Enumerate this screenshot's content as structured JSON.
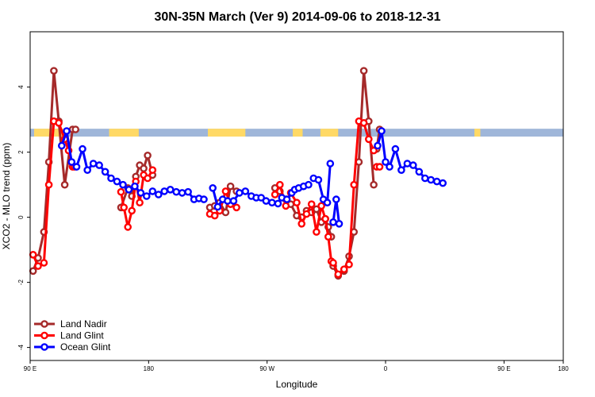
{
  "chart_data": {
    "type": "line",
    "title": "30N-35N March (Ver 9)   2014-09-06 to 2018-12-31",
    "xlabel": "Longitude",
    "ylabel": "XCO2 - MLO trend (ppm)",
    "xlim": [
      -90,
      180
    ],
    "ylim": [
      -4.4,
      5.7
    ],
    "x_tick_values": [
      -90,
      -30,
      30,
      90,
      150,
      180
    ],
    "x_tick_labels": [
      "90 E",
      "180",
      "90 W",
      "0",
      "90 E",
      "180"
    ],
    "y_ticks": [
      -4,
      -2,
      0,
      2,
      4
    ],
    "y_tick_labels": [
      "-4",
      "-2",
      "0",
      "2",
      "4"
    ],
    "legend_position": "bottom-left",
    "coverage_band": {
      "y_range": [
        2.48,
        2.72
      ],
      "land_color": "#ffd966",
      "ocean_color": "#9fb6d9",
      "land_segments": [
        [
          -88,
          -72
        ],
        [
          -50,
          -35
        ],
        [
          0,
          19
        ],
        [
          43,
          48
        ],
        [
          57,
          66
        ],
        [
          135,
          138
        ]
      ]
    },
    "series": [
      {
        "name": "Land Nadir",
        "color": "#a52a2a",
        "segments": [
          {
            "x": [
              -88.5,
              -86,
              -83,
              -80.5,
              -78,
              -75.5,
              -72.5,
              -68.5,
              -67
            ],
            "y": [
              -1.65,
              -1.25,
              -0.45,
              1.7,
              4.5,
              2.95,
              1.0,
              2.7,
              2.7
            ]
          },
          {
            "x": [
              -44,
              -40.5,
              -38.5,
              -36.5,
              -34.5,
              -32.5,
              -30.5,
              -28
            ],
            "y": [
              0.3,
              0.9,
              0.65,
              1.25,
              1.6,
              1.5,
              1.9,
              1.3
            ]
          },
          {
            "x": [
              1,
              3.5,
              6,
              9,
              11.5,
              14.5
            ],
            "y": [
              0.3,
              0.35,
              0.45,
              0.15,
              0.95,
              0.8
            ]
          },
          {
            "x": [
              34,
              36.5,
              39.5,
              42,
              45,
              47.5,
              50,
              52.5,
              55,
              57.5,
              59.5,
              61,
              62.5
            ],
            "y": [
              0.9,
              0.8,
              0.55,
              0.4,
              0.05,
              0.0,
              0.2,
              0.15,
              0.25,
              -0.15,
              -0.05,
              -0.3,
              -0.6
            ]
          },
          {
            "x": [
              63.5,
              66,
              69,
              71.5,
              74,
              76.5,
              79,
              81.5,
              84
            ],
            "y": [
              -1.5,
              -1.8,
              -1.65,
              -1.2,
              -0.45,
              1.7,
              4.5,
              2.95,
              1.0
            ]
          },
          {
            "x": [
              85.5,
              87
            ],
            "y": [
              2.1,
              2.7
            ]
          }
        ]
      },
      {
        "name": "Land Glint",
        "color": "#ff0000",
        "segments": [
          {
            "x": [
              -88.5,
              -86,
              -83,
              -80.5,
              -78,
              -75.5,
              -72.5,
              -70.5,
              -68.5,
              -67.5
            ],
            "y": [
              -1.15,
              -1.5,
              -1.4,
              1.0,
              2.95,
              2.9,
              2.4,
              2.05,
              1.55,
              1.55
            ]
          },
          {
            "x": [
              -44,
              -42.5,
              -40.5,
              -38.5,
              -36.5,
              -34.5,
              -32.5,
              -30.5,
              -28
            ],
            "y": [
              0.78,
              0.3,
              -0.3,
              0.2,
              1.1,
              0.45,
              1.3,
              1.2,
              1.45
            ]
          },
          {
            "x": [
              1,
              3.5,
              6,
              9,
              11.5,
              14.5
            ],
            "y": [
              0.1,
              0.05,
              0.2,
              0.8,
              0.4,
              0.3
            ]
          },
          {
            "x": [
              34,
              36.5,
              39.5,
              42,
              45,
              47.5,
              50,
              52.5,
              55,
              57.5,
              59.5,
              61,
              62.5
            ],
            "y": [
              0.7,
              1.0,
              0.35,
              0.75,
              0.45,
              -0.2,
              0.1,
              0.4,
              -0.45,
              0.35,
              -0.05,
              -0.6,
              -1.35
            ]
          },
          {
            "x": [
              63.5,
              66,
              69,
              71.5,
              74,
              76.5,
              79,
              81.5,
              84
            ],
            "y": [
              -1.4,
              -1.75,
              -1.6,
              -1.45,
              1.0,
              2.95,
              2.9,
              2.4,
              2.05
            ]
          },
          {
            "x": [
              85.5,
              87
            ],
            "y": [
              1.55,
              1.55
            ]
          }
        ]
      },
      {
        "name": "Ocean Glint",
        "color": "#0000ff",
        "segments": [
          {
            "x": [
              -74,
              -71.5,
              -69,
              -66.5,
              -63.5,
              -61,
              -58,
              -55,
              -52,
              -49,
              -46,
              -43,
              -40,
              -37,
              -34,
              -31,
              -28,
              -25,
              -22,
              -19,
              -16,
              -13,
              -10,
              -7
            ],
            "y": [
              2.2,
              2.65,
              1.7,
              1.55,
              2.1,
              1.45,
              1.65,
              1.6,
              1.4,
              1.2,
              1.1,
              1.0,
              0.85,
              0.95,
              0.75,
              0.65,
              0.8,
              0.7,
              0.8,
              0.85,
              0.78,
              0.75,
              0.78,
              0.55
            ]
          },
          {
            "x": [
              -4.5,
              -2
            ],
            "y": [
              0.58,
              0.55
            ]
          },
          {
            "x": [
              2.5,
              5,
              7.5,
              10,
              13,
              16,
              19,
              22,
              24.5,
              27
            ],
            "y": [
              0.9,
              0.32,
              0.55,
              0.5,
              0.5,
              0.75,
              0.8,
              0.65,
              0.6,
              0.6
            ]
          },
          {
            "x": [
              29.5,
              32.5,
              35.5,
              37.5,
              40,
              42.5
            ],
            "y": [
              0.5,
              0.45,
              0.42,
              0.6,
              0.55,
              0.75
            ]
          },
          {
            "x": [
              44,
              46,
              48.5,
              51
            ],
            "y": [
              0.85,
              0.9,
              0.95,
              1.0
            ]
          },
          {
            "x": [
              53.5,
              56,
              58.5,
              60.5,
              62
            ],
            "y": [
              1.2,
              1.15,
              0.55,
              0.45,
              1.65
            ]
          },
          {
            "x": [
              63.5,
              65,
              66.5
            ],
            "y": [
              -0.15,
              0.55,
              -0.2
            ]
          },
          {
            "x": [
              86,
              88,
              90,
              92,
              95,
              98,
              101,
              104,
              107,
              110,
              113,
              116,
              119
            ],
            "y": [
              2.2,
              2.65,
              1.7,
              1.55,
              2.1,
              1.45,
              1.65,
              1.6,
              1.4,
              1.2,
              1.15,
              1.1,
              1.05
            ]
          }
        ]
      }
    ]
  }
}
